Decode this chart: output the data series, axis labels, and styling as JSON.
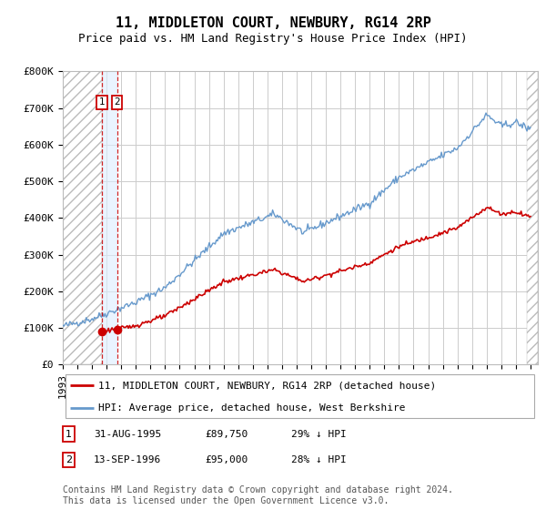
{
  "title": "11, MIDDLETON COURT, NEWBURY, RG14 2RP",
  "subtitle": "Price paid vs. HM Land Registry's House Price Index (HPI)",
  "ylim": [
    0,
    800000
  ],
  "yticks": [
    0,
    100000,
    200000,
    300000,
    400000,
    500000,
    600000,
    700000,
    800000
  ],
  "ytick_labels": [
    "£0",
    "£100K",
    "£200K",
    "£300K",
    "£400K",
    "£500K",
    "£600K",
    "£700K",
    "£800K"
  ],
  "xlim_start": 1993.0,
  "xlim_end": 2025.5,
  "t1_date": 1995.667,
  "t1_price": 89750,
  "t2_date": 1996.708,
  "t2_price": 95000,
  "transactions": [
    {
      "date_num": 1995.667,
      "price": 89750,
      "label": "1",
      "date_str": "31-AUG-1995",
      "pct": "29% ↓ HPI"
    },
    {
      "date_num": 1996.708,
      "price": 95000,
      "label": "2",
      "date_str": "13-SEP-1996",
      "pct": "28% ↓ HPI"
    }
  ],
  "legend_line1": "11, MIDDLETON COURT, NEWBURY, RG14 2RP (detached house)",
  "legend_line2": "HPI: Average price, detached house, West Berkshire",
  "footer": "Contains HM Land Registry data © Crown copyright and database right 2024.\nThis data is licensed under the Open Government Licence v3.0.",
  "red_color": "#cc0000",
  "blue_color": "#6699cc",
  "bg_color": "#ffffff",
  "grid_color": "#cccccc",
  "title_fontsize": 11,
  "subtitle_fontsize": 9,
  "tick_fontsize": 8,
  "legend_fontsize": 8,
  "footer_fontsize": 7,
  "hpi_seed": 42,
  "red_seed": 123,
  "hpi_noise_scale": 5000,
  "red_noise_scale": 3000
}
